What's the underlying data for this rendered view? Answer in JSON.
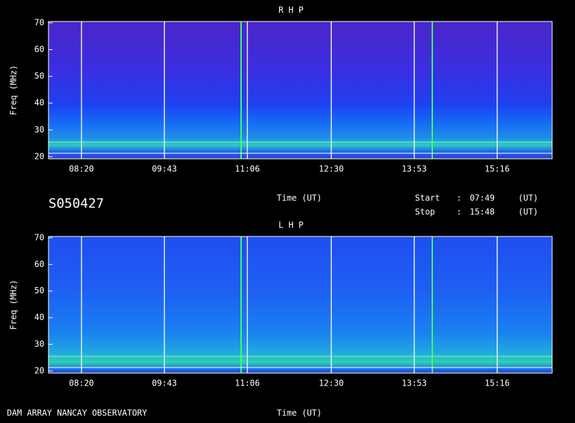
{
  "chart_data": [
    {
      "type": "heatmap",
      "title": "R H P",
      "x_label": "Time (UT)",
      "y_label": "Freq (MHz)",
      "xlim": [
        "07:47",
        "16:11"
      ],
      "xticks": [
        "08:20",
        "09:43",
        "11:06",
        "12:30",
        "13:53",
        "15:16"
      ],
      "ylim": [
        19.2,
        70.5
      ],
      "yticks": [
        20,
        30,
        40,
        50,
        60,
        70
      ],
      "grid": true
    },
    {
      "type": "heatmap",
      "title": "L H P",
      "x_label": "Time (UT)",
      "y_label": "Freq (MHz)",
      "xlim": [
        "07:47",
        "16:11"
      ],
      "xticks": [
        "08:20",
        "09:43",
        "11:06",
        "12:30",
        "13:53",
        "15:16"
      ],
      "ylim": [
        19.2,
        70.5
      ],
      "yticks": [
        20,
        30,
        40,
        50,
        60,
        70
      ],
      "grid": true
    }
  ],
  "header": {
    "id": "S050427",
    "start_label": "Start",
    "start_sep": ":",
    "start_time": "07:49",
    "start_unit": "(UT)",
    "stop_label": "Stop",
    "stop_sep": ":",
    "stop_time": "15:48",
    "stop_unit": "(UT)"
  },
  "footer": {
    "credit": "DAM ARRAY  NANCAY OBSERVATORY"
  }
}
